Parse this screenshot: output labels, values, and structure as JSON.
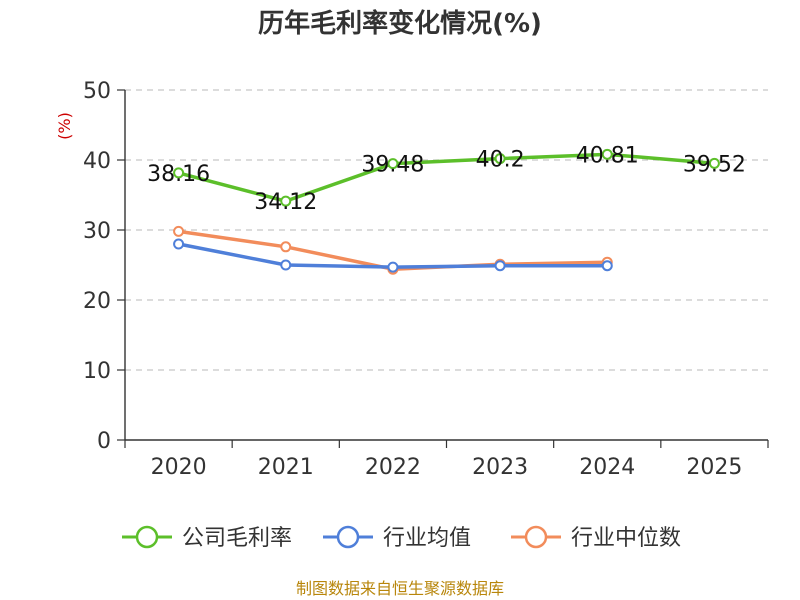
{
  "chart_data": {
    "type": "line",
    "title": "历年毛利率变化情况(%)",
    "xlabel": "",
    "ylabel": "(%)",
    "categories": [
      "2020",
      "2021",
      "2022",
      "2023",
      "2024",
      "2025"
    ],
    "ylim": [
      0,
      50
    ],
    "yticks": [
      "0",
      "10",
      "20",
      "30",
      "40",
      "50"
    ],
    "grid": true,
    "legend_position": "bottom",
    "series": [
      {
        "name": "公司毛利率",
        "color": "#5cbf2a",
        "values": [
          38.16,
          34.12,
          39.48,
          40.2,
          40.81,
          39.52
        ],
        "labels": [
          "38.16",
          "34.12",
          "39.48",
          "40.2",
          "40.81",
          "39.52"
        ]
      },
      {
        "name": "行业均值",
        "color": "#4f7fd9",
        "values": [
          28.0,
          25.0,
          24.7,
          24.9,
          24.9,
          null
        ],
        "labels": []
      },
      {
        "name": "行业中位数",
        "color": "#f28c5b",
        "values": [
          29.8,
          27.6,
          24.4,
          25.1,
          25.4,
          null
        ],
        "labels": []
      }
    ]
  },
  "footer": {
    "source": "制图数据来自恒生聚源数据库"
  }
}
